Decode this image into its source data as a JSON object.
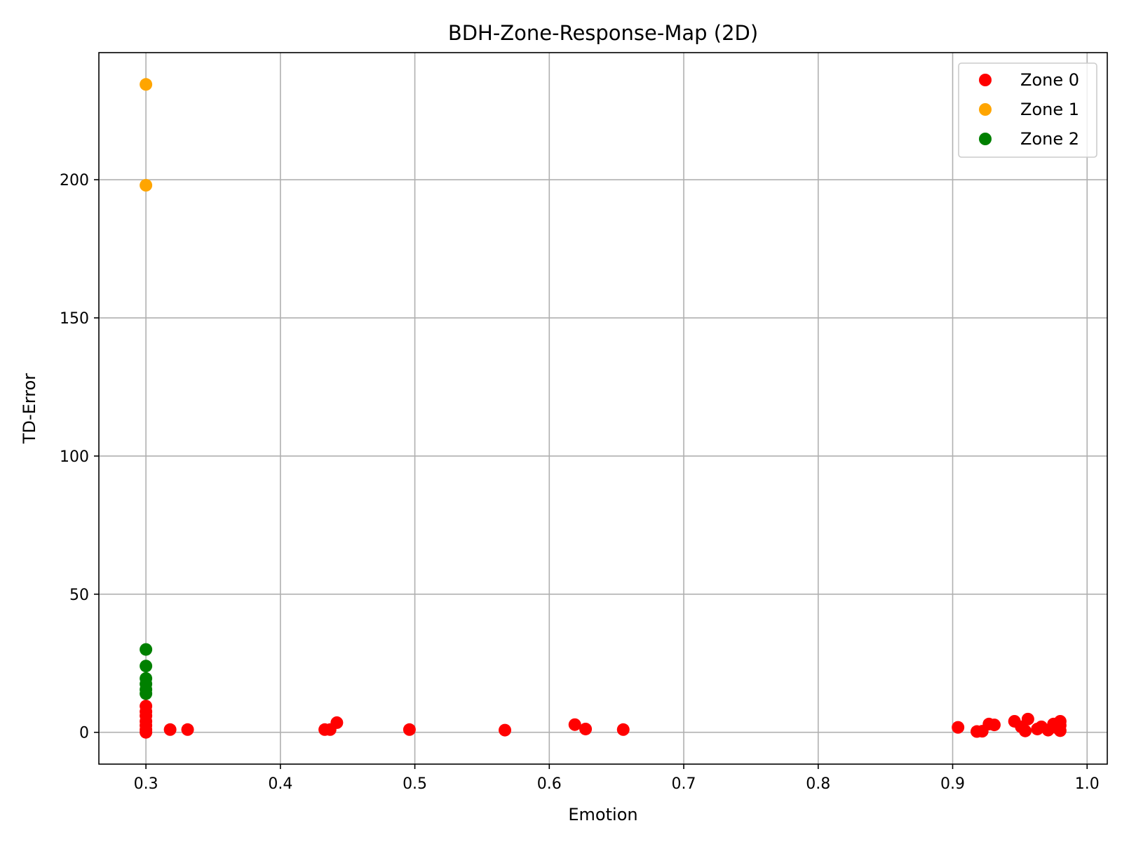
{
  "chart_data": {
    "type": "scatter",
    "title": "BDH-Zone-Response-Map (2D)",
    "xlabel": "Emotion",
    "ylabel": "TD-Error",
    "xlim": [
      0.265,
      1.015
    ],
    "ylim": [
      -11.5,
      246
    ],
    "x_ticks": [
      0.3,
      0.4,
      0.5,
      0.6,
      0.7,
      0.8,
      0.9,
      1.0
    ],
    "x_tick_labels": [
      "0.3",
      "0.4",
      "0.5",
      "0.6",
      "0.7",
      "0.8",
      "0.9",
      "1.0"
    ],
    "y_ticks": [
      0,
      50,
      100,
      150,
      200
    ],
    "y_tick_labels": [
      "0",
      "50",
      "100",
      "150",
      "200"
    ],
    "grid": true,
    "legend_position": "top-right",
    "series": [
      {
        "name": "Zone 0",
        "color": "#ff0000",
        "points": [
          [
            0.3,
            0.0
          ],
          [
            0.3,
            1.0
          ],
          [
            0.3,
            2.5
          ],
          [
            0.3,
            4.0
          ],
          [
            0.3,
            6.0
          ],
          [
            0.3,
            7.5
          ],
          [
            0.3,
            9.5
          ],
          [
            0.318,
            1.0
          ],
          [
            0.331,
            1.0
          ],
          [
            0.433,
            1.0
          ],
          [
            0.437,
            1.0
          ],
          [
            0.442,
            3.5
          ],
          [
            0.496,
            1.0
          ],
          [
            0.567,
            0.8
          ],
          [
            0.619,
            2.8
          ],
          [
            0.627,
            1.2
          ],
          [
            0.655,
            1.0
          ],
          [
            0.904,
            1.8
          ],
          [
            0.918,
            0.3
          ],
          [
            0.922,
            0.4
          ],
          [
            0.927,
            3.0
          ],
          [
            0.931,
            2.7
          ],
          [
            0.946,
            4.0
          ],
          [
            0.951,
            2.0
          ],
          [
            0.954,
            0.5
          ],
          [
            0.956,
            4.8
          ],
          [
            0.963,
            1.2
          ],
          [
            0.966,
            2.0
          ],
          [
            0.971,
            0.8
          ],
          [
            0.975,
            3.0
          ],
          [
            0.978,
            1.5
          ],
          [
            0.98,
            4.0
          ],
          [
            0.98,
            0.6
          ],
          [
            0.98,
            2.5
          ]
        ]
      },
      {
        "name": "Zone 1",
        "color": "#ffa500",
        "points": [
          [
            0.3,
            234.5
          ],
          [
            0.3,
            198.0
          ]
        ]
      },
      {
        "name": "Zone 2",
        "color": "#008000",
        "points": [
          [
            0.3,
            30.0
          ],
          [
            0.3,
            24.0
          ],
          [
            0.3,
            19.5
          ],
          [
            0.3,
            17.5
          ],
          [
            0.3,
            15.5
          ],
          [
            0.3,
            14.0
          ]
        ]
      }
    ]
  }
}
